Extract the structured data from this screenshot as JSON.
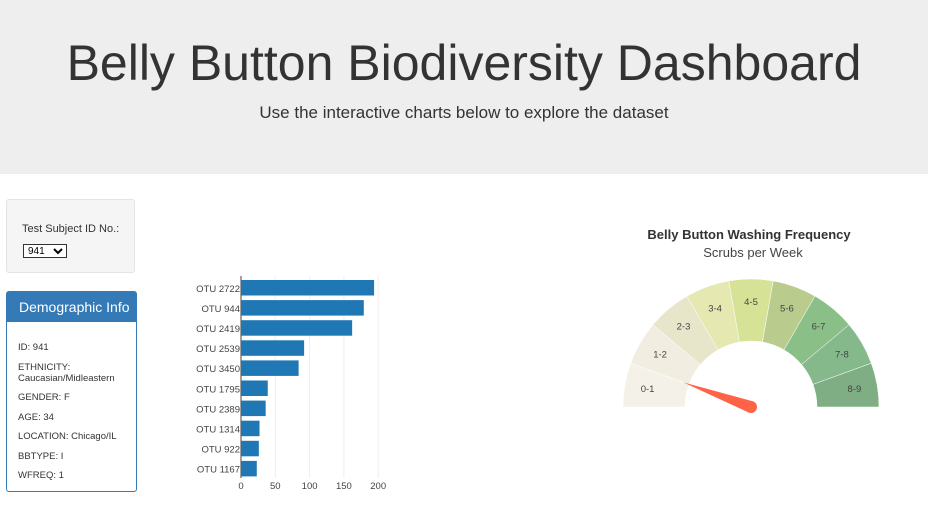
{
  "header": {
    "title": "Belly Button Biodiversity Dashboard",
    "subtitle": "Use the interactive charts below to explore the dataset"
  },
  "selector": {
    "label": "Test Subject ID No.:",
    "selected": "941"
  },
  "demographics": {
    "heading": "Demographic Info",
    "rows": [
      {
        "key": "ID",
        "value": "941"
      },
      {
        "key": "ETHNICITY",
        "value": "Caucasian/Midleastern"
      },
      {
        "key": "GENDER",
        "value": "F"
      },
      {
        "key": "AGE",
        "value": "34"
      },
      {
        "key": "LOCATION",
        "value": "Chicago/IL"
      },
      {
        "key": "BBTYPE",
        "value": "I"
      },
      {
        "key": "WFREQ",
        "value": "1"
      }
    ]
  },
  "colors": {
    "bar": "#1f77b4",
    "needle": "#ff6347",
    "panel": "#337ab7"
  },
  "chart_data": [
    {
      "type": "bar",
      "orientation": "horizontal",
      "categories": [
        "OTU 2722",
        "OTU 944",
        "OTU 2419",
        "OTU 2539",
        "OTU 3450",
        "OTU 1795",
        "OTU 2389",
        "OTU 1314",
        "OTU 922",
        "OTU 1167"
      ],
      "values": [
        194,
        179,
        162,
        92,
        84,
        39,
        36,
        27,
        26,
        23
      ],
      "xlim": [
        0,
        210
      ],
      "xticks": [
        0,
        50,
        100,
        150,
        200
      ],
      "grid": true
    },
    {
      "type": "gauge",
      "title": "Belly Button Washing Frequency",
      "subtitle": "Scrubs per Week",
      "value": 1,
      "range": [
        0,
        9
      ],
      "segments": [
        {
          "label": "0-1",
          "color": "#f4f1e9"
        },
        {
          "label": "1-2",
          "color": "#f1eee1"
        },
        {
          "label": "2-3",
          "color": "#e8e6ca"
        },
        {
          "label": "3-4",
          "color": "#e5e8b0"
        },
        {
          "label": "4-5",
          "color": "#d6e396"
        },
        {
          "label": "5-6",
          "color": "#b9cc8e"
        },
        {
          "label": "6-7",
          "color": "#8bbf88"
        },
        {
          "label": "7-8",
          "color": "#85b98c"
        },
        {
          "label": "8-9",
          "color": "#7fae85"
        }
      ]
    }
  ]
}
